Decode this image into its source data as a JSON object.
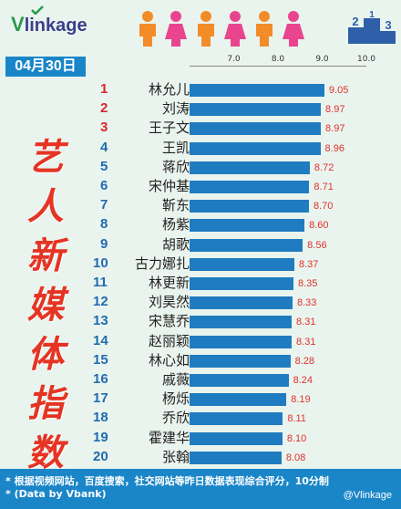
{
  "header": {
    "logo_text": "Vlinkage",
    "logo_brand_initial": "V",
    "logo_brand_rest": "linkage",
    "date": "04月30日",
    "podium_numbers": [
      "2",
      "1",
      "3"
    ]
  },
  "side_title": [
    "艺",
    "人",
    "新",
    "媒",
    "体",
    "指",
    "数"
  ],
  "footer": {
    "note1": "* 根据视频网站，百度搜索，社交网站等昨日数据表现综合评分，10分制",
    "note2": "* (Data by Vbank)",
    "watermark": "@Vlinkage"
  },
  "colors": {
    "bar": "#1f7cc0",
    "value": "#e0302a",
    "top_rank": "#d8262d",
    "rank": "#1f6bb0",
    "title": "#e53423",
    "banner": "#1a86c8"
  },
  "chart_data": {
    "type": "bar",
    "orientation": "horizontal",
    "xlim": [
      6.0,
      10.0
    ],
    "ticks": [
      "7.0",
      "8.0",
      "9.0",
      "10.0"
    ],
    "tick_values": [
      7.0,
      8.0,
      9.0,
      10.0
    ],
    "ranks": [
      "1",
      "2",
      "3",
      "4",
      "5",
      "6",
      "7",
      "8",
      "9",
      "10",
      "11",
      "12",
      "13",
      "14",
      "15",
      "16",
      "17",
      "18",
      "19",
      "20"
    ],
    "categories": [
      "林允儿",
      "刘涛",
      "王子文",
      "王凯",
      "蒋欣",
      "宋仲基",
      "靳东",
      "杨紫",
      "胡歌",
      "古力娜扎",
      "林更新",
      "刘昊然",
      "宋慧乔",
      "赵丽颖",
      "林心如",
      "戚薇",
      "杨烁",
      "乔欣",
      "霍建华",
      "张翰"
    ],
    "values": [
      9.05,
      8.97,
      8.97,
      8.96,
      8.72,
      8.71,
      8.7,
      8.6,
      8.56,
      8.37,
      8.35,
      8.33,
      8.31,
      8.31,
      8.28,
      8.24,
      8.19,
      8.11,
      8.1,
      8.08
    ],
    "value_labels": [
      "9.05",
      "8.97",
      "8.97",
      "8.96",
      "8.72",
      "8.71",
      "8.70",
      "8.60",
      "8.56",
      "8.37",
      "8.35",
      "8.33",
      "8.31",
      "8.31",
      "8.28",
      "8.24",
      "8.19",
      "8.11",
      "8.10",
      "8.08"
    ]
  }
}
